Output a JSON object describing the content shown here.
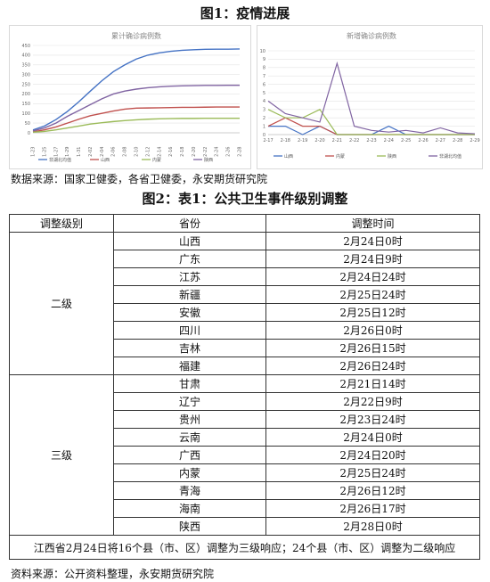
{
  "figure1": {
    "title": "图1：疫情进展",
    "source": "数据来源：国家卫健委，各省卫健委，永安期货研究院"
  },
  "figure2": {
    "title": "图2：表1：公共卫生事件级别调整",
    "source": "资料来源：公开资料整理，永安期货研究院"
  },
  "table": {
    "headers": [
      "调整级别",
      "省份",
      "调整时间"
    ],
    "groups": [
      {
        "level": "二级",
        "rows": [
          [
            "山西",
            "2月24日0时"
          ],
          [
            "广东",
            "2月24日9时"
          ],
          [
            "江苏",
            "2月24日24时"
          ],
          [
            "新疆",
            "2月25日24时"
          ],
          [
            "安徽",
            "2月25日12时"
          ],
          [
            "四川",
            "2月26日0时"
          ],
          [
            "吉林",
            "2月26日15时"
          ],
          [
            "福建",
            "2月26日24时"
          ]
        ]
      },
      {
        "level": "三级",
        "rows": [
          [
            "甘肃",
            "2月21日14时"
          ],
          [
            "辽宁",
            "2月22日9时"
          ],
          [
            "贵州",
            "2月23日24时"
          ],
          [
            "云南",
            "2月24日0时"
          ],
          [
            "广西",
            "2月24日20时"
          ],
          [
            "内蒙",
            "2月25日24时"
          ],
          [
            "青海",
            "2月26日12时"
          ],
          [
            "海南",
            "2月26日17时"
          ],
          [
            "陕西",
            "2月28日0时"
          ]
        ]
      }
    ],
    "note": "江西省2月24日将16个县（市、区）调整为三级响应；24个县（市、区）调整为二级响应"
  },
  "chart_data": [
    {
      "type": "line",
      "title": "累计确诊病例数",
      "ylim": [
        0,
        450
      ],
      "yticks": [
        0,
        50,
        100,
        150,
        200,
        250,
        300,
        350,
        400,
        450
      ],
      "x": [
        "1-23",
        "1-25",
        "1-27",
        "1-29",
        "1-31",
        "2-02",
        "2-04",
        "2-06",
        "2-08",
        "2-10",
        "2-12",
        "2-14",
        "2-16",
        "2-18",
        "2-20",
        "2-22",
        "2-24",
        "2-26",
        "2-28"
      ],
      "series": [
        {
          "name": "非湖北均值",
          "color": "#4472c4",
          "values": [
            15,
            35,
            68,
            110,
            160,
            215,
            268,
            315,
            350,
            380,
            400,
            412,
            420,
            425,
            428,
            430,
            431,
            431,
            432
          ]
        },
        {
          "name": "山西",
          "color": "#c0504d",
          "values": [
            5,
            15,
            30,
            50,
            70,
            88,
            100,
            112,
            122,
            127,
            128,
            129,
            130,
            131,
            131,
            132,
            133,
            133,
            133
          ]
        },
        {
          "name": "内蒙",
          "color": "#9bbb59",
          "values": [
            3,
            7,
            15,
            25,
            35,
            45,
            52,
            58,
            63,
            67,
            70,
            72,
            73,
            74,
            74,
            75,
            75,
            75,
            75
          ]
        },
        {
          "name": "陕西",
          "color": "#8064a2",
          "values": [
            10,
            25,
            50,
            85,
            115,
            145,
            175,
            200,
            215,
            225,
            232,
            237,
            240,
            242,
            243,
            244,
            244,
            245,
            245
          ]
        }
      ],
      "grid": true,
      "legend": "bottom"
    },
    {
      "type": "line",
      "title": "新增确诊病例数",
      "ylim": [
        0,
        10
      ],
      "yticks": [
        0,
        1,
        2,
        3,
        4,
        5,
        6,
        7,
        8,
        9,
        10
      ],
      "x": [
        "2-17",
        "2-18",
        "2-19",
        "2-20",
        "2-21",
        "2-22",
        "2-23",
        "2-24",
        "2-25",
        "2-26",
        "2-27",
        "2-28",
        "2-29"
      ],
      "series": [
        {
          "name": "山西",
          "color": "#4472c4",
          "values": [
            1,
            1,
            0,
            1,
            0,
            0,
            0,
            1,
            0,
            0,
            0,
            0,
            0
          ]
        },
        {
          "name": "内蒙",
          "color": "#c0504d",
          "values": [
            1,
            2,
            1,
            1,
            0,
            0,
            0,
            0,
            0,
            0,
            0,
            0,
            0
          ]
        },
        {
          "name": "陕西",
          "color": "#9bbb59",
          "values": [
            3,
            2,
            2,
            3,
            0,
            0,
            0,
            0,
            0,
            0,
            0,
            0,
            0
          ]
        },
        {
          "name": "非湖北均值",
          "color": "#8064a2",
          "values": [
            4,
            2.5,
            2,
            1.5,
            8.5,
            1,
            0.5,
            0.3,
            0.5,
            0.2,
            0.8,
            0.2,
            0.1
          ]
        }
      ],
      "grid": true,
      "legend": "bottom"
    }
  ]
}
